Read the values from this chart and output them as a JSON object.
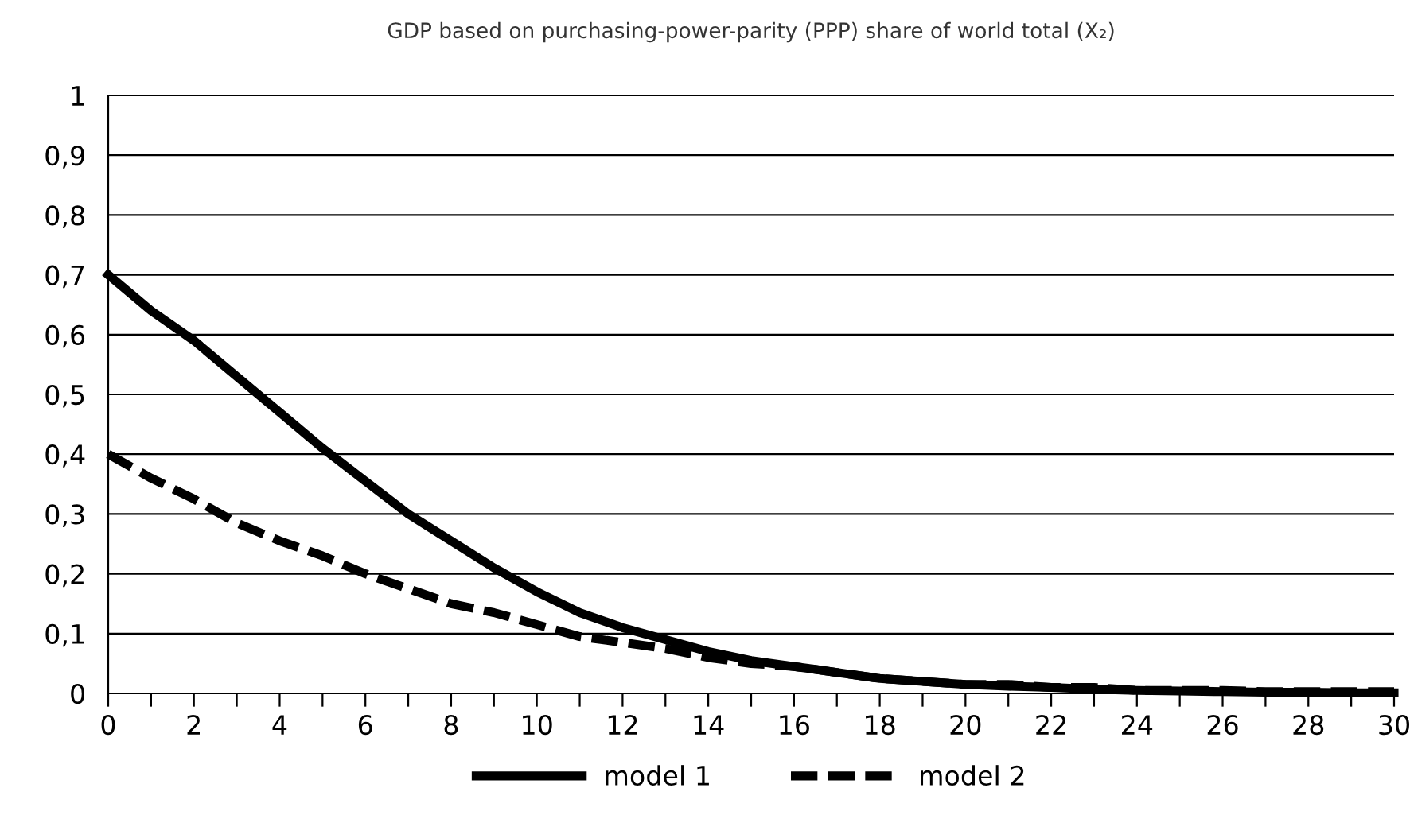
{
  "chart_data": {
    "type": "line",
    "title": "GDP based on purchasing-power-parity (PPP) share of world total (X₂)",
    "x": [
      0,
      1,
      2,
      3,
      4,
      5,
      6,
      7,
      8,
      9,
      10,
      11,
      12,
      13,
      14,
      15,
      16,
      17,
      18,
      19,
      20,
      21,
      22,
      23,
      24,
      25,
      26,
      27,
      28,
      29,
      30
    ],
    "series": [
      {
        "name": "model 1",
        "color": "#000000",
        "line_style": "solid",
        "values": [
          0.7,
          0.64,
          0.59,
          0.53,
          0.47,
          0.41,
          0.355,
          0.3,
          0.255,
          0.21,
          0.17,
          0.135,
          0.11,
          0.09,
          0.07,
          0.055,
          0.045,
          0.035,
          0.025,
          0.02,
          0.015,
          0.012,
          0.01,
          0.007,
          0.005,
          0.004,
          0.003,
          0.002,
          0.002,
          0.001,
          0.001
        ]
      },
      {
        "name": "model 2",
        "color": "#000000",
        "line_style": "dashed",
        "values": [
          0.4,
          0.36,
          0.325,
          0.285,
          0.255,
          0.23,
          0.2,
          0.175,
          0.15,
          0.135,
          0.115,
          0.095,
          0.085,
          0.075,
          0.06,
          0.05,
          0.045,
          0.035,
          0.025,
          0.02,
          0.015,
          0.015,
          0.01,
          0.01,
          0.005,
          0.005,
          0.005,
          0.003,
          0.003,
          0.003,
          0.003
        ]
      }
    ],
    "xlim": [
      0,
      30
    ],
    "xticks": [
      0,
      {
        "value": 1,
        "label": null
      },
      2,
      {
        "value": 3,
        "label": null
      },
      4,
      {
        "value": 5,
        "label": null
      },
      6,
      {
        "value": 7,
        "label": null
      },
      8,
      {
        "value": 9,
        "label": null
      },
      10,
      {
        "value": 11,
        "label": null
      },
      12,
      {
        "value": 13,
        "label": null
      },
      14,
      {
        "value": 15,
        "label": null
      },
      16,
      {
        "value": 17,
        "label": null
      },
      18,
      {
        "value": 19,
        "label": null
      },
      20,
      {
        "value": 21,
        "label": null
      },
      22,
      {
        "value": 23,
        "label": null
      },
      24,
      {
        "value": 25,
        "label": null
      },
      26,
      {
        "value": 27,
        "label": null
      },
      28,
      {
        "value": 29,
        "label": null
      },
      30
    ],
    "ylim": [
      0,
      1
    ],
    "yticks": [
      0,
      {
        "value": 0.1,
        "label": "0,1"
      },
      {
        "value": 0.2,
        "label": "0,2"
      },
      {
        "value": 0.3,
        "label": "0,3"
      },
      {
        "value": 0.4,
        "label": "0,4"
      },
      {
        "value": 0.5,
        "label": "0,5"
      },
      {
        "value": 0.6,
        "label": "0,6"
      },
      {
        "value": 0.7,
        "label": "0,7"
      },
      {
        "value": 0.8,
        "label": "0,8"
      },
      {
        "value": 0.9,
        "label": "0,9"
      },
      1
    ],
    "grid": "y",
    "legend": "bottom"
  }
}
